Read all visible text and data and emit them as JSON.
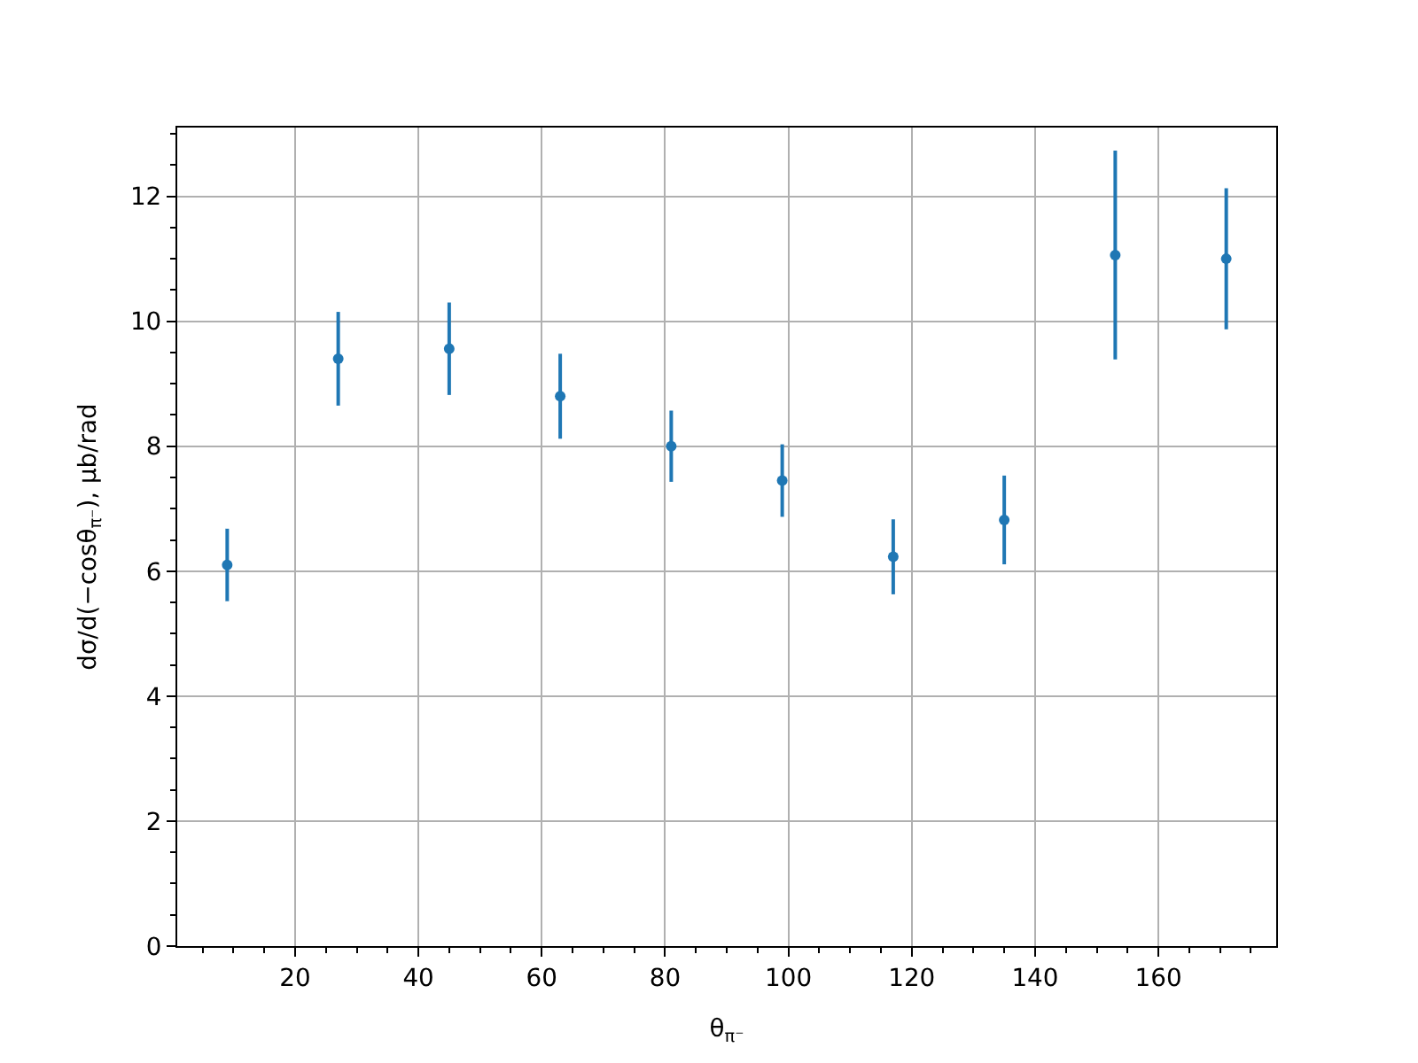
{
  "chart_data": {
    "type": "scatter",
    "xlabel": "θ$_{π⁻}$",
    "ylabel": "dσ/d(−cosθ$_{π⁻}$), μb/rad",
    "x": [
      9,
      27,
      45,
      63,
      81,
      99,
      117,
      135,
      153,
      171
    ],
    "values": [
      6.1,
      9.4,
      9.56,
      8.8,
      8.0,
      7.45,
      6.23,
      6.82,
      11.06,
      11.0
    ],
    "errors": [
      0.58,
      0.75,
      0.74,
      0.68,
      0.57,
      0.58,
      0.6,
      0.71,
      1.67,
      1.13
    ],
    "color": "#1f77b4",
    "marker": "circle",
    "line_style": "none",
    "xlim": [
      0.9,
      179.1
    ],
    "ylim": [
      0,
      13.1
    ],
    "xticks": [
      {
        "value": 5,
        "label": null
      },
      {
        "value": 10,
        "label": null
      },
      {
        "value": 15,
        "label": null
      },
      20,
      {
        "value": 25,
        "label": null
      },
      {
        "value": 30,
        "label": null
      },
      {
        "value": 35,
        "label": null
      },
      40,
      {
        "value": 45,
        "label": null
      },
      {
        "value": 50,
        "label": null
      },
      {
        "value": 55,
        "label": null
      },
      60,
      {
        "value": 65,
        "label": null
      },
      {
        "value": 70,
        "label": null
      },
      {
        "value": 75,
        "label": null
      },
      80,
      {
        "value": 85,
        "label": null
      },
      {
        "value": 90,
        "label": null
      },
      {
        "value": 95,
        "label": null
      },
      100,
      {
        "value": 105,
        "label": null
      },
      {
        "value": 110,
        "label": null
      },
      {
        "value": 115,
        "label": null
      },
      120,
      {
        "value": 125,
        "label": null
      },
      {
        "value": 130,
        "label": null
      },
      {
        "value": 135,
        "label": null
      },
      140,
      {
        "value": 145,
        "label": null
      },
      {
        "value": 150,
        "label": null
      },
      {
        "value": 155,
        "label": null
      },
      160,
      {
        "value": 165,
        "label": null
      },
      {
        "value": 170,
        "label": null
      },
      {
        "value": 175,
        "label": null
      }
    ],
    "yticks": [
      0,
      {
        "value": 0.5,
        "label": null
      },
      {
        "value": 1,
        "label": null
      },
      {
        "value": 1.5,
        "label": null
      },
      2,
      {
        "value": 2.5,
        "label": null
      },
      {
        "value": 3,
        "label": null
      },
      {
        "value": 3.5,
        "label": null
      },
      4,
      {
        "value": 4.5,
        "label": null
      },
      {
        "value": 5,
        "label": null
      },
      {
        "value": 5.5,
        "label": null
      },
      6,
      {
        "value": 6.5,
        "label": null
      },
      {
        "value": 7,
        "label": null
      },
      {
        "value": 7.5,
        "label": null
      },
      8,
      {
        "value": 8.5,
        "label": null
      },
      {
        "value": 9,
        "label": null
      },
      {
        "value": 9.5,
        "label": null
      },
      10,
      {
        "value": 10.5,
        "label": null
      },
      {
        "value": 11,
        "label": null
      },
      {
        "value": 11.5,
        "label": null
      },
      12,
      {
        "value": 12.5,
        "label": null
      },
      {
        "value": 13,
        "label": null
      }
    ],
    "grid": true
  }
}
